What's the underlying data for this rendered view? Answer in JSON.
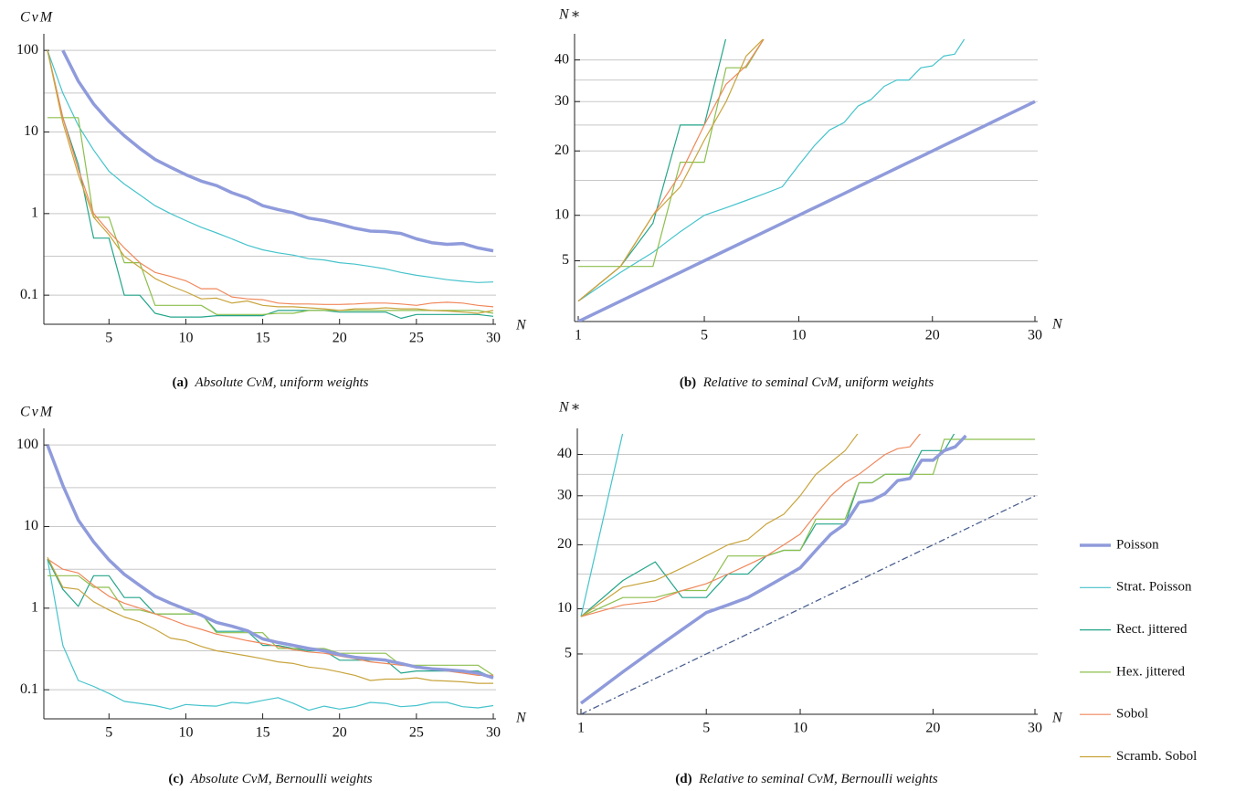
{
  "legend": {
    "entries": [
      {
        "name": "Poisson",
        "color": "#8f9bdb",
        "emphasis": true
      },
      {
        "name": "Strat. Poisson",
        "color": "#45c3cc"
      },
      {
        "name": "Rect. jittered",
        "color": "#23a58a"
      },
      {
        "name": "Hex. jittered",
        "color": "#8cbf4d"
      },
      {
        "name": "Sobol",
        "color": "#f0875a"
      },
      {
        "name": "Scramb. Sobol",
        "color": "#c8a43c"
      }
    ]
  },
  "chart_data": [
    {
      "type": "line",
      "caption": {
        "label": "(a)",
        "text": "Absolute CvM, uniform weights"
      },
      "xlabel": "N",
      "ylabel": "CvM",
      "xscale": "linear",
      "yscale": "log",
      "xlim": [
        1,
        30
      ],
      "ylim": [
        0.044,
        130
      ],
      "xticks": [
        5,
        10,
        15,
        20,
        25,
        30
      ],
      "yticks": [
        0.1,
        1,
        10,
        100
      ],
      "yminor": [
        0.3,
        3,
        30
      ],
      "grid": true,
      "x": [
        1,
        2,
        3,
        4,
        5,
        6,
        7,
        8,
        9,
        10,
        11,
        12,
        13,
        14,
        15,
        16,
        17,
        18,
        19,
        20,
        21,
        22,
        23,
        24,
        25,
        26,
        27,
        28,
        29,
        30
      ],
      "series": [
        {
          "values": [
            null,
            100,
            42,
            22,
            13.5,
            9,
            6.3,
            4.6,
            3.7,
            3.0,
            2.5,
            2.2,
            1.8,
            1.55,
            1.25,
            1.12,
            1.02,
            0.88,
            0.82,
            0.74,
            0.66,
            0.61,
            0.6,
            0.57,
            0.49,
            0.44,
            0.42,
            0.43,
            0.38,
            0.35
          ]
        },
        {
          "values": [
            100,
            30,
            12,
            6,
            3.3,
            2.3,
            1.7,
            1.25,
            1.0,
            0.82,
            0.68,
            0.58,
            0.49,
            0.41,
            0.36,
            0.33,
            0.31,
            0.28,
            0.27,
            0.25,
            0.24,
            0.225,
            0.21,
            0.19,
            0.175,
            0.165,
            0.155,
            0.148,
            0.143,
            0.145
          ]
        },
        {
          "values": [
            100,
            15,
            4,
            0.5,
            0.5,
            0.1,
            0.1,
            0.06,
            0.054,
            0.054,
            0.054,
            0.056,
            0.056,
            0.056,
            0.056,
            0.065,
            0.065,
            0.065,
            0.065,
            0.062,
            0.062,
            0.062,
            0.062,
            0.052,
            0.058,
            0.058,
            0.058,
            0.058,
            0.058,
            0.055
          ]
        },
        {
          "values": [
            15,
            15,
            15,
            0.9,
            0.9,
            0.25,
            0.25,
            0.075,
            0.075,
            0.075,
            0.075,
            0.058,
            0.058,
            0.058,
            0.058,
            0.06,
            0.06,
            0.065,
            0.065,
            0.065,
            0.065,
            0.065,
            0.065,
            0.065,
            0.065,
            0.065,
            0.065,
            0.065,
            0.065,
            0.06
          ]
        },
        {
          "values": [
            100,
            15,
            3.5,
            1.0,
            0.6,
            0.38,
            0.25,
            0.19,
            0.17,
            0.15,
            0.12,
            0.12,
            0.095,
            0.09,
            0.088,
            0.08,
            0.078,
            0.078,
            0.077,
            0.077,
            0.078,
            0.08,
            0.08,
            0.078,
            0.075,
            0.08,
            0.082,
            0.08,
            0.075,
            0.072
          ]
        },
        {
          "values": [
            100,
            13,
            3,
            0.9,
            0.55,
            0.3,
            0.22,
            0.16,
            0.13,
            0.11,
            0.09,
            0.092,
            0.08,
            0.085,
            0.075,
            0.072,
            0.072,
            0.07,
            0.068,
            0.065,
            0.068,
            0.068,
            0.07,
            0.068,
            0.068,
            0.065,
            0.064,
            0.062,
            0.06,
            0.065
          ]
        }
      ]
    },
    {
      "type": "line",
      "caption": {
        "label": "(b)",
        "text": "Relative to seminal CvM, uniform weights"
      },
      "xlabel": "N",
      "ylabel": "N∗",
      "xscale": "sqrt",
      "yscale": "sqrt",
      "xlim": [
        1,
        30
      ],
      "ylim": [
        1,
        45
      ],
      "xticks": [
        1,
        5,
        10,
        20,
        30
      ],
      "yticks": [
        5,
        10,
        20,
        30,
        40
      ],
      "yminor": [
        15,
        25,
        35
      ],
      "grid": true,
      "x": [
        1,
        2,
        3,
        4,
        5,
        6,
        7,
        8,
        9,
        10,
        11,
        12,
        13,
        14,
        15,
        16,
        17,
        18,
        19,
        20,
        21,
        22,
        23,
        24,
        25,
        26,
        27,
        28,
        29,
        30
      ],
      "series": [
        {
          "values": [
            1,
            2,
            3,
            4,
            5,
            6,
            7,
            8,
            9,
            10,
            11,
            12,
            13,
            14,
            15,
            16,
            17,
            18,
            19,
            20,
            21,
            22,
            23,
            24,
            25,
            26,
            27,
            28,
            29,
            30
          ]
        },
        {
          "values": [
            2,
            4,
            5.8,
            8,
            10,
            11,
            12,
            13,
            14,
            17.5,
            21,
            24,
            25.5,
            29,
            30.5,
            33.5,
            35,
            35,
            38,
            38.5,
            41,
            41.5,
            46,
            null,
            null,
            null,
            null,
            null,
            null,
            null
          ]
        },
        {
          "values": [
            2,
            4.5,
            9,
            25,
            25,
            46,
            null,
            null,
            null,
            null,
            null,
            null,
            null,
            null,
            null,
            null,
            null,
            null,
            null,
            null,
            null,
            null,
            null,
            null,
            null,
            null,
            null,
            null,
            null,
            null
          ]
        },
        {
          "values": [
            4.5,
            4.5,
            4.5,
            18,
            18,
            38,
            38,
            46,
            null,
            null,
            null,
            null,
            null,
            null,
            null,
            null,
            null,
            null,
            null,
            null,
            null,
            null,
            null,
            null,
            null,
            null,
            null,
            null,
            null,
            null
          ]
        },
        {
          "values": [
            2,
            4.5,
            10,
            16,
            25,
            34,
            38.5,
            46,
            null,
            null,
            null,
            null,
            null,
            null,
            null,
            null,
            null,
            null,
            null,
            null,
            null,
            null,
            null,
            null,
            null,
            null,
            null,
            null,
            null,
            null
          ]
        },
        {
          "values": [
            2,
            4.5,
            10,
            14,
            22,
            30,
            41,
            46,
            null,
            null,
            null,
            null,
            null,
            null,
            null,
            null,
            null,
            null,
            null,
            null,
            null,
            null,
            null,
            null,
            null,
            null,
            null,
            null,
            null,
            null
          ]
        }
      ]
    },
    {
      "type": "line",
      "caption": {
        "label": "(c)",
        "text": "Absolute CvM, Bernoulli weights"
      },
      "xlabel": "N",
      "ylabel": "CvM",
      "xscale": "linear",
      "yscale": "log",
      "xlim": [
        1,
        30
      ],
      "ylim": [
        0.044,
        130
      ],
      "xticks": [
        5,
        10,
        15,
        20,
        25,
        30
      ],
      "yticks": [
        0.1,
        1,
        10,
        100
      ],
      "yminor": [
        0.3,
        3,
        30
      ],
      "grid": true,
      "x": [
        1,
        2,
        3,
        4,
        5,
        6,
        7,
        8,
        9,
        10,
        11,
        12,
        13,
        14,
        15,
        16,
        17,
        18,
        19,
        20,
        21,
        22,
        23,
        24,
        25,
        26,
        27,
        28,
        29,
        30
      ],
      "series": [
        {
          "values": [
            100,
            32,
            12,
            6.5,
            3.9,
            2.6,
            1.9,
            1.4,
            1.15,
            0.97,
            0.82,
            0.67,
            0.6,
            0.53,
            0.42,
            0.38,
            0.35,
            0.32,
            0.3,
            0.27,
            0.25,
            0.24,
            0.23,
            0.21,
            0.19,
            0.18,
            0.175,
            0.17,
            0.16,
            0.14
          ]
        },
        {
          "values": [
            4,
            0.35,
            0.13,
            0.11,
            0.09,
            0.072,
            0.068,
            0.064,
            0.058,
            0.066,
            0.064,
            0.063,
            0.07,
            0.068,
            0.074,
            0.08,
            0.068,
            0.056,
            0.063,
            0.058,
            0.062,
            0.07,
            0.068,
            0.062,
            0.064,
            0.07,
            0.07,
            0.062,
            0.06,
            0.064
          ]
        },
        {
          "values": [
            4,
            1.7,
            1.05,
            2.5,
            2.5,
            1.35,
            1.35,
            0.85,
            0.85,
            0.85,
            0.85,
            0.52,
            0.52,
            0.52,
            0.35,
            0.35,
            0.32,
            0.3,
            0.3,
            0.23,
            0.23,
            0.23,
            0.23,
            0.16,
            0.17,
            0.17,
            0.17,
            0.17,
            0.17,
            0.14
          ]
        },
        {
          "values": [
            2.5,
            2.5,
            2.5,
            1.8,
            1.8,
            0.95,
            0.95,
            0.85,
            0.85,
            0.85,
            0.85,
            0.5,
            0.5,
            0.5,
            0.5,
            0.32,
            0.32,
            0.32,
            0.32,
            0.28,
            0.28,
            0.28,
            0.28,
            0.2,
            0.2,
            0.2,
            0.2,
            0.2,
            0.2,
            0.15
          ]
        },
        {
          "values": [
            4,
            3,
            2.7,
            1.9,
            1.4,
            1.15,
            1.0,
            0.85,
            0.73,
            0.62,
            0.55,
            0.48,
            0.44,
            0.4,
            0.37,
            0.34,
            0.31,
            0.29,
            0.28,
            0.26,
            0.24,
            0.22,
            0.21,
            0.2,
            0.19,
            0.18,
            0.17,
            0.16,
            0.15,
            0.15
          ]
        },
        {
          "values": [
            4.2,
            1.8,
            1.7,
            1.2,
            0.95,
            0.78,
            0.68,
            0.55,
            0.43,
            0.4,
            0.34,
            0.3,
            0.28,
            0.26,
            0.24,
            0.22,
            0.21,
            0.19,
            0.18,
            0.165,
            0.15,
            0.13,
            0.135,
            0.135,
            0.14,
            0.13,
            0.128,
            0.125,
            0.12,
            0.12
          ]
        }
      ]
    },
    {
      "type": "line",
      "caption": {
        "label": "(d)",
        "text": "Relative to seminal CvM, Bernoulli weights"
      },
      "xlabel": "N",
      "ylabel": "N∗",
      "xscale": "sqrt",
      "yscale": "sqrt",
      "xlim": [
        1,
        30
      ],
      "ylim": [
        1,
        45
      ],
      "xticks": [
        1,
        5,
        10,
        20,
        30
      ],
      "yticks": [
        5,
        10,
        20,
        30,
        40
      ],
      "yminor": [
        15,
        25,
        35
      ],
      "grid": true,
      "reference": {
        "color": "#4a5f8f",
        "x": [
          1,
          30
        ],
        "values": [
          1,
          30
        ]
      },
      "x": [
        1,
        2,
        3,
        4,
        5,
        6,
        7,
        8,
        9,
        10,
        11,
        12,
        13,
        14,
        15,
        16,
        17,
        18,
        19,
        20,
        21,
        22,
        23,
        24,
        25,
        26,
        27,
        28,
        29,
        30
      ],
      "series": [
        {
          "values": [
            1.5,
            3.5,
            5.5,
            7.5,
            9.5,
            10.5,
            11.5,
            13,
            14.5,
            16,
            19,
            22,
            24,
            28.5,
            29,
            30.5,
            33.5,
            34,
            38.5,
            38.5,
            41,
            42,
            45,
            null,
            null,
            null,
            null,
            null,
            null,
            null
          ]
        },
        {
          "values": [
            9,
            46,
            null,
            null,
            null,
            null,
            null,
            null,
            null,
            null,
            null,
            null,
            null,
            null,
            null,
            null,
            null,
            null,
            null,
            null,
            null,
            null,
            null,
            null,
            null,
            null,
            null,
            null,
            null,
            null
          ]
        },
        {
          "values": [
            9,
            14,
            17,
            11.5,
            11.5,
            15,
            15,
            18,
            19,
            19,
            24,
            24,
            24,
            33,
            33,
            35,
            35,
            35,
            41,
            41,
            41,
            46,
            null,
            null,
            null,
            null,
            null,
            null,
            null,
            null
          ]
        },
        {
          "values": [
            9,
            11.5,
            11.5,
            12.5,
            12.5,
            18,
            18,
            18,
            19,
            19,
            25,
            25,
            25,
            33,
            33,
            35,
            35,
            35,
            35,
            35,
            44,
            44,
            44,
            44,
            44,
            44,
            44,
            44,
            44,
            44
          ]
        },
        {
          "values": [
            9,
            10.5,
            11,
            12.5,
            13.5,
            15,
            16.5,
            18,
            20,
            22,
            26,
            30,
            33,
            35,
            37.5,
            40,
            41.5,
            42,
            46,
            null,
            null,
            null,
            null,
            null,
            null,
            null,
            null,
            null,
            null,
            null
          ]
        },
        {
          "values": [
            9,
            13,
            14,
            16,
            18,
            20,
            21,
            24,
            26,
            30,
            35,
            38,
            41,
            46,
            null,
            null,
            null,
            null,
            null,
            null,
            null,
            null,
            null,
            null,
            null,
            null,
            null,
            null,
            null,
            null
          ]
        }
      ]
    }
  ]
}
